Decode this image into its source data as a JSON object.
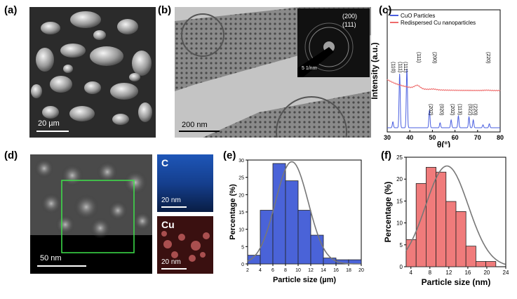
{
  "panels": {
    "a": {
      "label": "(a)",
      "scale": "20 µm"
    },
    "b": {
      "label": "(b)",
      "scale": "200 nm",
      "inset_ring_1": "(200)",
      "inset_ring_2": "(111)",
      "inset_scale": "5 1/nm"
    },
    "c": {
      "label": "(c)"
    },
    "d": {
      "label": "(d)",
      "scale": "50 nm",
      "map_c_label": "C",
      "map_c_scale": "20 nm",
      "map_cu_label": "Cu",
      "map_cu_scale": "20 nm"
    },
    "e": {
      "label": "(e)"
    },
    "f": {
      "label": "(f)"
    }
  },
  "chart_data": [
    {
      "id": "c",
      "type": "line",
      "xlabel": "θ(°)",
      "ylabel": "Intensity (a.u.)",
      "xlim": [
        30,
        80
      ],
      "xticks": [
        30,
        40,
        50,
        60,
        70,
        80
      ],
      "legend_position": "top-left",
      "series": [
        {
          "name": "CuO Particles",
          "color": "#4a5fe0",
          "peaks": [
            [
              32.5,
              0.06
            ],
            [
              35.5,
              0.55
            ],
            [
              38.7,
              0.6
            ],
            [
              48.7,
              0.18
            ],
            [
              53.4,
              0.05
            ],
            [
              58.3,
              0.08
            ],
            [
              61.5,
              0.12
            ],
            [
              66.2,
              0.11
            ],
            [
              68.1,
              0.08
            ],
            [
              72.4,
              0.03
            ],
            [
              75.2,
              0.04
            ]
          ]
        },
        {
          "name": "Redispersed Cu nanoparticles",
          "color": "#ee6a6a",
          "peaks": [
            [
              43.3,
              0.1
            ],
            [
              50.4,
              0.02
            ],
            [
              74.1,
              0.01
            ]
          ]
        }
      ],
      "annotations": [
        {
          "text": "(110)",
          "x": 32.0,
          "series": "CuO Particles"
        },
        {
          "text": "(111)",
          "x": 35.2,
          "series": "CuO Particles"
        },
        {
          "text": "(111)",
          "x": 37.5,
          "series": "CuO Particles"
        },
        {
          "text": "(202)",
          "x": 48.7,
          "series": "CuO Particles"
        },
        {
          "text": "(020)",
          "x": 53.4,
          "series": "CuO Particles"
        },
        {
          "text": "(202)",
          "x": 58.3,
          "series": "CuO Particles"
        },
        {
          "text": "(113)",
          "x": 61.5,
          "series": "CuO Particles"
        },
        {
          "text": "(022)",
          "x": 66.2,
          "series": "CuO Particles"
        },
        {
          "text": "(220)",
          "x": 68.4,
          "series": "CuO Particles"
        },
        {
          "text": "(111)",
          "x": 43.3,
          "series": "Redispersed Cu nanoparticles"
        },
        {
          "text": "(200)",
          "x": 50.4,
          "series": "Redispersed Cu nanoparticles"
        },
        {
          "text": "(220)",
          "x": 74.1,
          "series": "Redispersed Cu nanoparticles"
        }
      ]
    },
    {
      "id": "e",
      "type": "bar",
      "xlabel": "Particle size (µm)",
      "ylabel": "Percentage (%)",
      "xlim": [
        2,
        20
      ],
      "ylim": [
        0,
        30
      ],
      "xticks": [
        2,
        4,
        6,
        8,
        10,
        12,
        14,
        16,
        18,
        20
      ],
      "yticks": [
        0,
        5,
        10,
        15,
        20,
        25,
        30
      ],
      "bin_edges": [
        2,
        4,
        6,
        8,
        10,
        12,
        14,
        16,
        18,
        20
      ],
      "values": [
        2.5,
        15.5,
        29,
        24,
        15.5,
        8.3,
        1.7,
        1.2,
        1.2
      ],
      "bar_color": "#4a63d8",
      "fit": {
        "mean": 9.0,
        "sd": 2.6,
        "peak": 29.5
      }
    },
    {
      "id": "f",
      "type": "bar",
      "xlabel": "Particle size (nm)",
      "ylabel": "Percentage (%)",
      "xlim": [
        3,
        24
      ],
      "ylim": [
        0,
        25
      ],
      "xticks": [
        4,
        8,
        12,
        16,
        20,
        24
      ],
      "yticks": [
        0,
        5,
        10,
        15,
        20,
        25
      ],
      "bin_edges": [
        3,
        5.1,
        7.2,
        9.3,
        11.4,
        13.5,
        15.6,
        17.7,
        19.8,
        21.9,
        24
      ],
      "values": [
        6.2,
        19.0,
        22.7,
        21.6,
        14.9,
        12.6,
        4.7,
        1.2,
        1.2,
        0
      ],
      "bar_color": "#f07b7b",
      "fit": {
        "mean": 11.6,
        "sd": 4.5,
        "peak": 23.0
      }
    }
  ]
}
